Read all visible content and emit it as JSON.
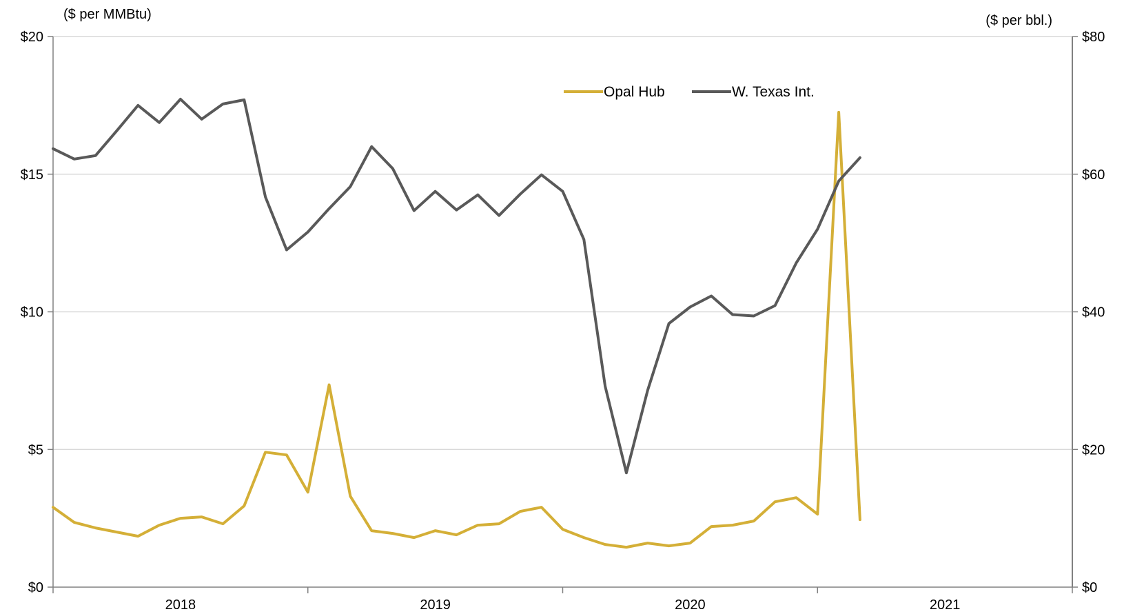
{
  "colors": {
    "opal_hub": "#D4AF37",
    "wti": "#595959",
    "grid": "#D9D9D9",
    "axis": "#808080"
  },
  "chart_data": {
    "type": "line",
    "left_axis": {
      "unit_label": "($ per MMBtu)",
      "ticks": [
        "$0",
        "$5",
        "$10",
        "$15",
        "$20"
      ],
      "range": [
        0,
        20
      ]
    },
    "right_axis": {
      "unit_label": "($ per bbl.)",
      "ticks": [
        "$0",
        "$20",
        "$40",
        "$60",
        "$80"
      ],
      "range": [
        0,
        80
      ]
    },
    "x_axis": {
      "years": [
        "2018",
        "2019",
        "2020",
        "2021"
      ],
      "start_month": "2018-01",
      "months_shown": 48
    },
    "grid": true,
    "legend_position": "top-right",
    "legend": [
      "Opal Hub",
      "W. Texas Int."
    ],
    "series": [
      {
        "name": "Opal Hub",
        "axis": "left",
        "values": [
          2.9,
          2.35,
          2.15,
          2.0,
          1.85,
          2.25,
          2.5,
          2.55,
          2.3,
          2.95,
          4.9,
          4.8,
          3.45,
          7.35,
          3.3,
          2.05,
          1.95,
          1.8,
          2.05,
          1.9,
          2.25,
          2.3,
          2.75,
          2.9,
          2.1,
          1.8,
          1.55,
          1.45,
          1.6,
          1.5,
          1.6,
          2.2,
          2.25,
          2.4,
          3.1,
          3.25,
          2.65,
          17.25,
          2.45
        ]
      },
      {
        "name": "W. Texas Int.",
        "axis": "right",
        "values": [
          63.7,
          62.2,
          62.7,
          66.3,
          70.0,
          67.5,
          70.9,
          68.0,
          70.2,
          70.8,
          56.7,
          49.0,
          51.6,
          55.0,
          58.2,
          64.0,
          60.8,
          54.7,
          57.5,
          54.8,
          57.0,
          54.0,
          57.1,
          59.9,
          57.5,
          50.5,
          29.2,
          16.6,
          28.6,
          38.3,
          40.7,
          42.3,
          39.6,
          39.4,
          40.9,
          47.1,
          52.0,
          59.0,
          62.4
        ]
      }
    ]
  }
}
